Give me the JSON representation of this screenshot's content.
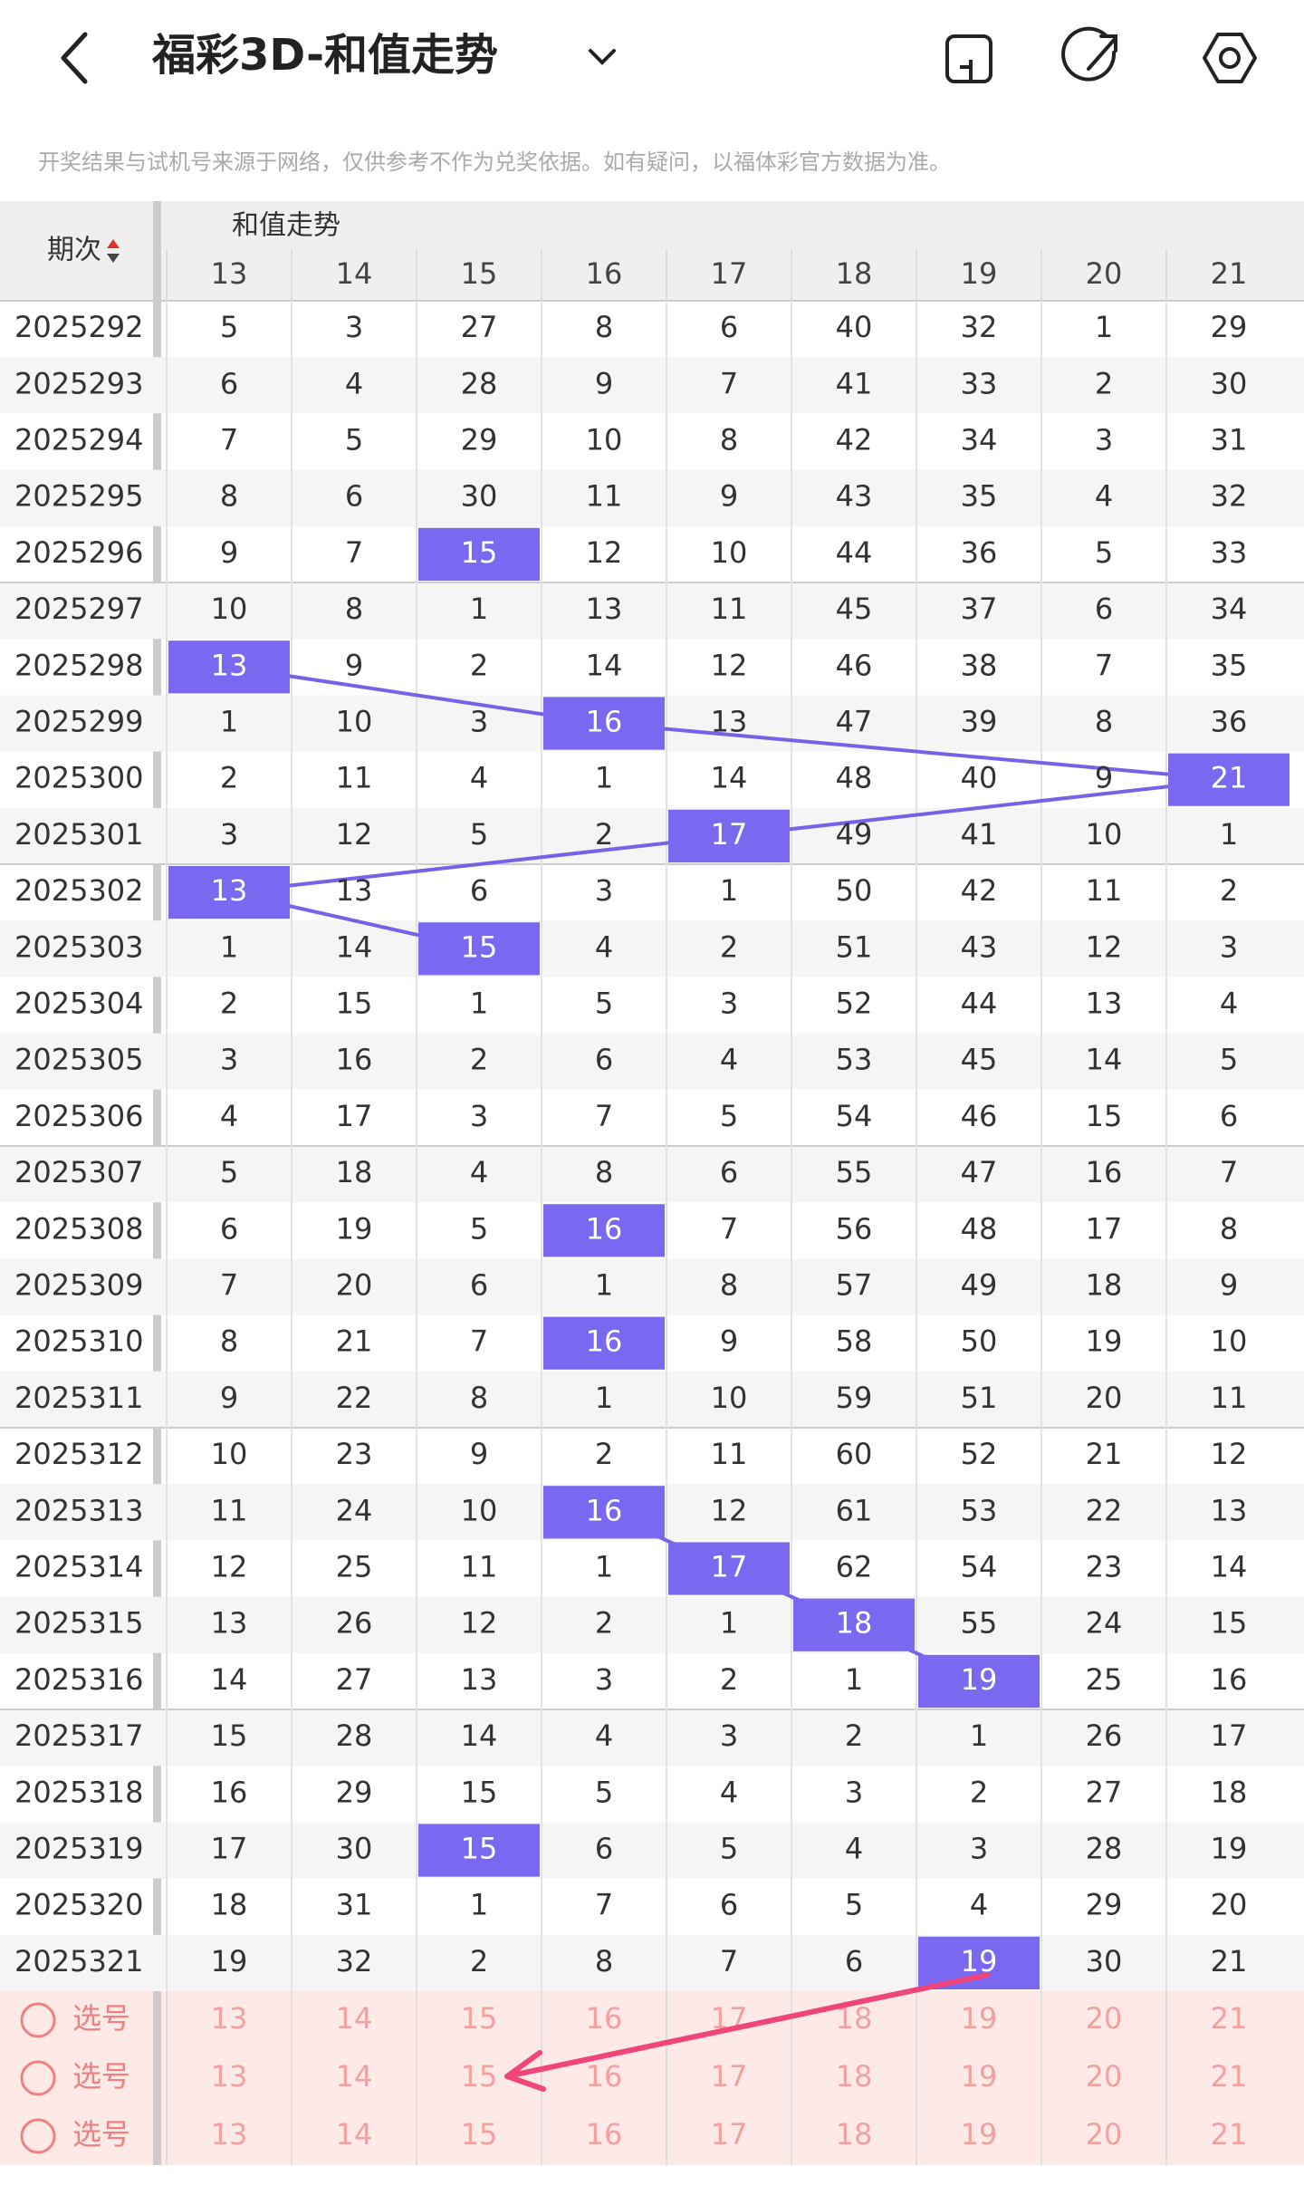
{
  "header": {
    "title": "福彩3D-和值走势"
  },
  "notice": "开奖结果与试机号来源于网络，仅供参考不作为兑奖依据。如有疑问，以福体彩官方数据为准。",
  "table": {
    "period_header": "期次",
    "group_header": "和值走势",
    "columns": [
      13,
      14,
      15,
      16,
      17,
      18,
      19,
      20,
      21
    ],
    "rows": [
      {
        "period": "2025292",
        "values": [
          5,
          3,
          27,
          8,
          6,
          40,
          32,
          1,
          29
        ],
        "highlight": null
      },
      {
        "period": "2025293",
        "values": [
          6,
          4,
          28,
          9,
          7,
          41,
          33,
          2,
          30
        ],
        "highlight": null
      },
      {
        "period": "2025294",
        "values": [
          7,
          5,
          29,
          10,
          8,
          42,
          34,
          3,
          31
        ],
        "highlight": null
      },
      {
        "period": "2025295",
        "values": [
          8,
          6,
          30,
          11,
          9,
          43,
          35,
          4,
          32
        ],
        "highlight": null
      },
      {
        "period": "2025296",
        "values": [
          9,
          7,
          15,
          12,
          10,
          44,
          36,
          5,
          33
        ],
        "highlight": 2
      },
      {
        "period": "2025297",
        "values": [
          10,
          8,
          1,
          13,
          11,
          45,
          37,
          6,
          34
        ],
        "highlight": null
      },
      {
        "period": "2025298",
        "values": [
          13,
          9,
          2,
          14,
          12,
          46,
          38,
          7,
          35
        ],
        "highlight": 0
      },
      {
        "period": "2025299",
        "values": [
          1,
          10,
          3,
          16,
          13,
          47,
          39,
          8,
          36
        ],
        "highlight": 3
      },
      {
        "period": "2025300",
        "values": [
          2,
          11,
          4,
          1,
          14,
          48,
          40,
          9,
          21
        ],
        "highlight": 8
      },
      {
        "period": "2025301",
        "values": [
          3,
          12,
          5,
          2,
          17,
          49,
          41,
          10,
          1
        ],
        "highlight": 4
      },
      {
        "period": "2025302",
        "values": [
          13,
          13,
          6,
          3,
          1,
          50,
          42,
          11,
          2
        ],
        "highlight": 0
      },
      {
        "period": "2025303",
        "values": [
          1,
          14,
          15,
          4,
          2,
          51,
          43,
          12,
          3
        ],
        "highlight": 2
      },
      {
        "period": "2025304",
        "values": [
          2,
          15,
          1,
          5,
          3,
          52,
          44,
          13,
          4
        ],
        "highlight": null
      },
      {
        "period": "2025305",
        "values": [
          3,
          16,
          2,
          6,
          4,
          53,
          45,
          14,
          5
        ],
        "highlight": null
      },
      {
        "period": "2025306",
        "values": [
          4,
          17,
          3,
          7,
          5,
          54,
          46,
          15,
          6
        ],
        "highlight": null
      },
      {
        "period": "2025307",
        "values": [
          5,
          18,
          4,
          8,
          6,
          55,
          47,
          16,
          7
        ],
        "highlight": null
      },
      {
        "period": "2025308",
        "values": [
          6,
          19,
          5,
          16,
          7,
          56,
          48,
          17,
          8
        ],
        "highlight": 3
      },
      {
        "period": "2025309",
        "values": [
          7,
          20,
          6,
          1,
          8,
          57,
          49,
          18,
          9
        ],
        "highlight": null
      },
      {
        "period": "2025310",
        "values": [
          8,
          21,
          7,
          16,
          9,
          58,
          50,
          19,
          10
        ],
        "highlight": 3
      },
      {
        "period": "2025311",
        "values": [
          9,
          22,
          8,
          1,
          10,
          59,
          51,
          20,
          11
        ],
        "highlight": null
      },
      {
        "period": "2025312",
        "values": [
          10,
          23,
          9,
          2,
          11,
          60,
          52,
          21,
          12
        ],
        "highlight": null
      },
      {
        "period": "2025313",
        "values": [
          11,
          24,
          10,
          16,
          12,
          61,
          53,
          22,
          13
        ],
        "highlight": 3
      },
      {
        "period": "2025314",
        "values": [
          12,
          25,
          11,
          1,
          17,
          62,
          54,
          23,
          14
        ],
        "highlight": 4
      },
      {
        "period": "2025315",
        "values": [
          13,
          26,
          12,
          2,
          1,
          18,
          55,
          24,
          15
        ],
        "highlight": 5
      },
      {
        "period": "2025316",
        "values": [
          14,
          27,
          13,
          3,
          2,
          1,
          19,
          25,
          16
        ],
        "highlight": 6
      },
      {
        "period": "2025317",
        "values": [
          15,
          28,
          14,
          4,
          3,
          2,
          1,
          26,
          17
        ],
        "highlight": null
      },
      {
        "period": "2025318",
        "values": [
          16,
          29,
          15,
          5,
          4,
          3,
          2,
          27,
          18
        ],
        "highlight": null
      },
      {
        "period": "2025319",
        "values": [
          17,
          30,
          15,
          6,
          5,
          4,
          3,
          28,
          19
        ],
        "highlight": 2
      },
      {
        "period": "2025320",
        "values": [
          18,
          31,
          1,
          7,
          6,
          5,
          4,
          29,
          20
        ],
        "highlight": null
      },
      {
        "period": "2025321",
        "values": [
          19,
          32,
          2,
          8,
          7,
          6,
          19,
          30,
          21
        ],
        "highlight": 6
      }
    ],
    "select_rows": [
      "选号",
      "选号",
      "选号"
    ]
  }
}
